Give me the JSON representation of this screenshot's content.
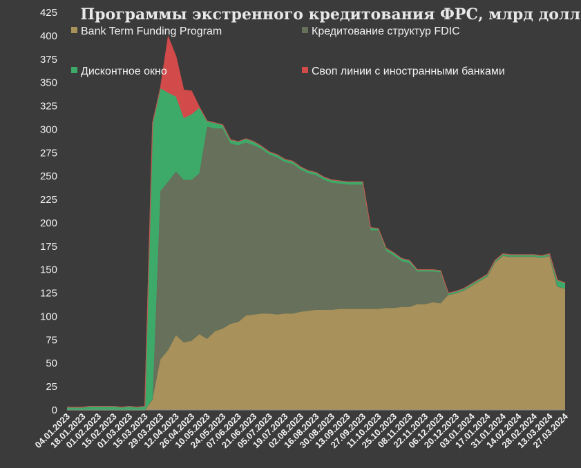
{
  "chart_data": {
    "type": "area",
    "stacked": true,
    "title": "Программы экстренного кредитования ФРС, млрд долл",
    "ylim": [
      0,
      425
    ],
    "yticks": [
      0,
      25,
      50,
      75,
      100,
      125,
      150,
      175,
      200,
      225,
      250,
      275,
      300,
      325,
      350,
      375,
      400,
      425
    ],
    "xtick_labels": [
      "04.01.2023",
      "18.01.2023",
      "01.02.2023",
      "15.02.2023",
      "01.03.2023",
      "15.03.2023",
      "29.03.2023",
      "12.04.2023",
      "26.04.2023",
      "10.05.2023",
      "24.05.2023",
      "07.06.2023",
      "21.06.2023",
      "05.07.2023",
      "19.07.2023",
      "02.08.2023",
      "16.08.2023",
      "30.08.2023",
      "13.09.2023",
      "27.09.2023",
      "11.10.2023",
      "25.10.2023",
      "08.11.2023",
      "22.11.2023",
      "06.12.2023",
      "20.12.2023",
      "03.01.2024",
      "17.01.2024",
      "31.01.2024",
      "14.02.2024",
      "28.02.2024",
      "13.03.2024",
      "27.03.2024"
    ],
    "legend_placement": "top",
    "grid": false,
    "x": [
      "04.01.2023",
      "11.01.2023",
      "18.01.2023",
      "25.01.2023",
      "01.02.2023",
      "08.02.2023",
      "15.02.2023",
      "22.02.2023",
      "01.03.2023",
      "08.03.2023",
      "15.03.2023",
      "22.03.2023",
      "29.03.2023",
      "05.04.2023",
      "12.04.2023",
      "19.04.2023",
      "26.04.2023",
      "03.05.2023",
      "10.05.2023",
      "17.05.2023",
      "24.05.2023",
      "31.05.2023",
      "07.06.2023",
      "14.06.2023",
      "21.06.2023",
      "28.06.2023",
      "05.07.2023",
      "12.07.2023",
      "19.07.2023",
      "26.07.2023",
      "02.08.2023",
      "09.08.2023",
      "16.08.2023",
      "23.08.2023",
      "30.08.2023",
      "06.09.2023",
      "13.09.2023",
      "20.09.2023",
      "27.09.2023",
      "04.10.2023",
      "11.10.2023",
      "18.10.2023",
      "25.10.2023",
      "01.11.2023",
      "08.11.2023",
      "15.11.2023",
      "22.11.2023",
      "29.11.2023",
      "06.12.2023",
      "13.12.2023",
      "20.12.2023",
      "27.12.2023",
      "03.01.2024",
      "10.01.2024",
      "17.01.2024",
      "24.01.2024",
      "31.01.2024",
      "07.02.2024",
      "14.02.2024",
      "21.02.2024",
      "28.02.2024",
      "06.03.2024",
      "13.03.2024",
      "20.03.2024",
      "27.03.2024"
    ],
    "series": [
      {
        "name": "Bank Term Funding Program",
        "color": "#a8915a",
        "values": [
          0,
          0,
          0,
          0,
          0,
          0,
          0,
          0,
          0,
          0,
          0,
          12,
          54,
          64,
          80,
          72,
          74,
          81,
          76,
          84,
          87,
          92,
          94,
          101,
          102,
          103,
          103,
          102,
          103,
          103,
          105,
          106,
          107,
          107,
          107,
          108,
          108,
          108,
          108,
          108,
          108,
          109,
          109,
          110,
          110,
          113,
          113,
          115,
          114,
          123,
          125,
          128,
          133,
          138,
          143,
          158,
          165,
          164,
          164,
          164,
          164,
          163,
          165,
          132,
          130
        ]
      },
      {
        "name": "Кредитование структур FDIC",
        "color": "#66705a",
        "values": [
          0,
          0,
          0,
          0,
          0,
          0,
          0,
          0,
          0,
          0,
          0,
          0,
          180,
          180,
          175,
          174,
          172,
          172,
          227,
          217,
          214,
          193,
          189,
          185,
          181,
          176,
          170,
          168,
          162,
          160,
          152,
          147,
          144,
          139,
          136,
          134,
          133,
          133,
          133,
          84,
          84,
          61,
          56,
          49,
          47,
          35,
          35,
          33,
          33,
          0,
          0,
          0,
          0,
          0,
          0,
          0,
          0,
          0,
          0,
          0,
          0,
          0,
          0,
          0,
          0
        ]
      },
      {
        "name": "Дисконтное окно",
        "color": "#3daa6a",
        "values": [
          3,
          3,
          3,
          4,
          4,
          4,
          4,
          3,
          4,
          3,
          4,
          295,
          110,
          95,
          80,
          66,
          70,
          70,
          6,
          6,
          4,
          4,
          4,
          4,
          4,
          3,
          3,
          3,
          3,
          3,
          3,
          3,
          3,
          3,
          3,
          3,
          3,
          3,
          3,
          3,
          2,
          3,
          3,
          3,
          3,
          2,
          2,
          2,
          2,
          2,
          2,
          2,
          2,
          2,
          2,
          2,
          2,
          2,
          2,
          2,
          2,
          2,
          2,
          7,
          6
        ]
      },
      {
        "name": "Своп линии с иностранными банками",
        "color": "#d24a4a",
        "values": [
          0,
          0,
          0,
          0,
          0,
          0,
          0,
          0,
          0,
          0,
          0,
          0,
          0,
          60,
          43,
          30,
          25,
          1,
          0,
          0,
          0,
          0,
          0,
          0,
          0,
          0,
          0,
          0,
          0,
          0,
          0,
          0,
          0,
          0,
          0,
          0,
          0,
          0,
          0,
          0,
          0,
          0,
          0,
          0,
          0,
          0,
          0,
          0,
          0,
          0,
          0,
          0,
          0,
          0,
          0,
          0,
          0,
          0,
          0,
          0,
          0,
          0,
          0,
          0,
          0
        ]
      }
    ]
  }
}
